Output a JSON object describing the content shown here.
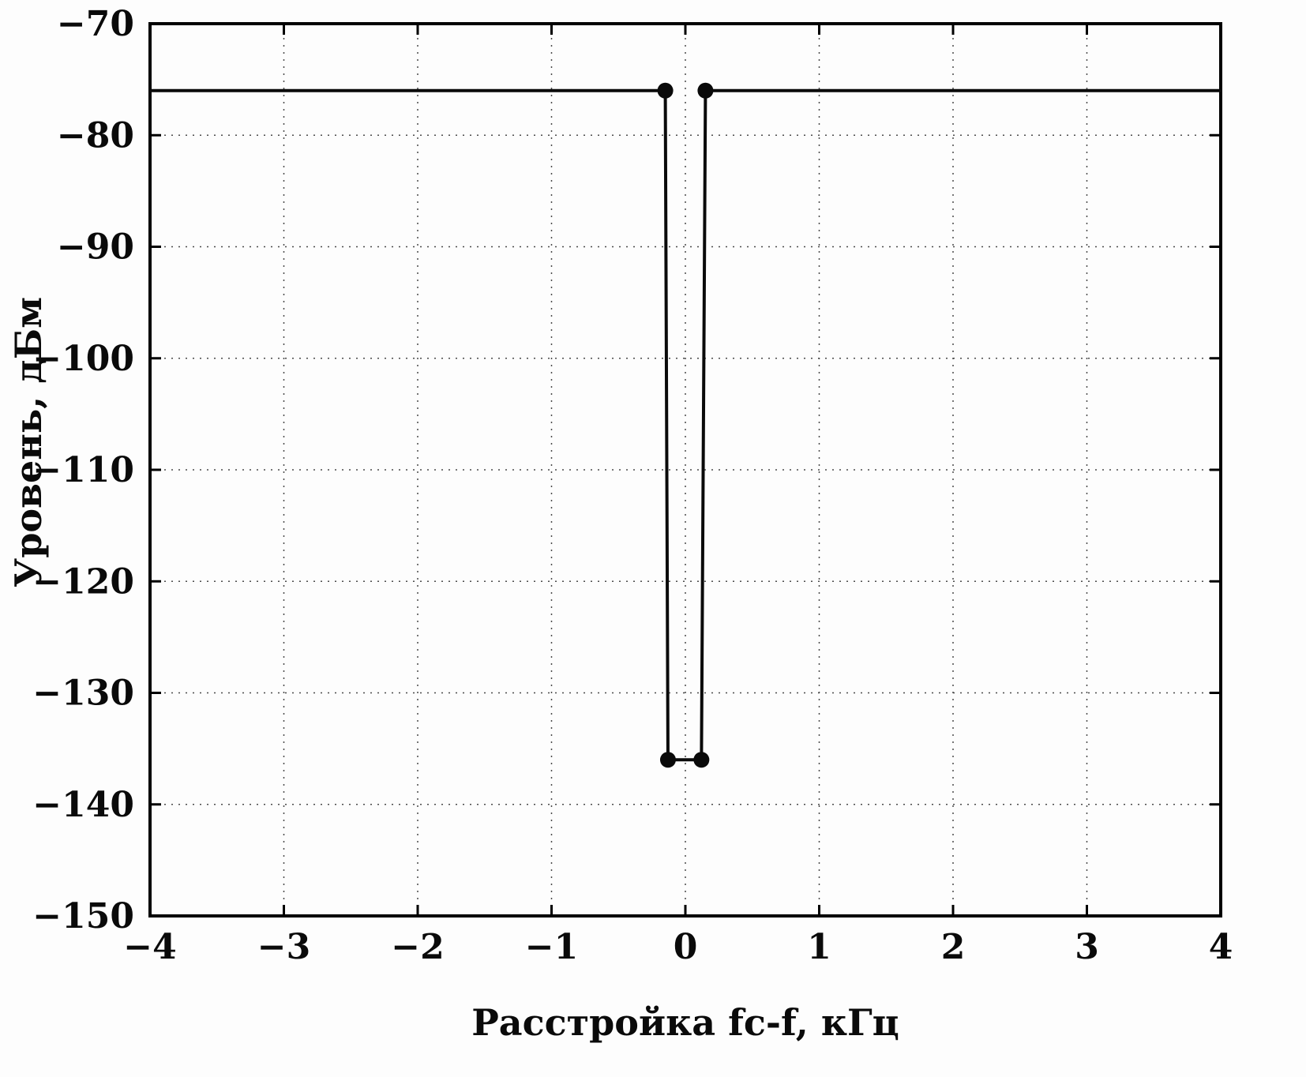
{
  "figure": {
    "background": "#fdfdfd",
    "line_color": "#0a0a0a"
  },
  "chart_data": {
    "type": "line",
    "title": "",
    "xlabel": "Расстройка fc-f, кГц",
    "ylabel": "Уровень, дБм",
    "xlim": [
      -4,
      4
    ],
    "ylim": [
      -150,
      -70
    ],
    "x_ticks": [
      -4,
      -3,
      -2,
      -1,
      0,
      1,
      2,
      3,
      4
    ],
    "y_ticks": [
      -150,
      -140,
      -130,
      -120,
      -110,
      -100,
      -90,
      -80,
      -70
    ],
    "grid": "dotted",
    "legend": "none",
    "series": [
      {
        "name": "spectrum-mask",
        "color": "#0a0a0a",
        "line_width": 4,
        "marker": "circle",
        "marker_size": 10,
        "points": [
          [
            -4,
            -76
          ],
          [
            -0.15,
            -76
          ],
          [
            -0.13,
            -136
          ],
          [
            0.12,
            -136
          ],
          [
            0.15,
            -76
          ],
          [
            4,
            -76
          ]
        ],
        "markers": [
          [
            -0.15,
            -76
          ],
          [
            0.15,
            -76
          ],
          [
            -0.13,
            -136
          ],
          [
            0.12,
            -136
          ]
        ]
      }
    ]
  }
}
